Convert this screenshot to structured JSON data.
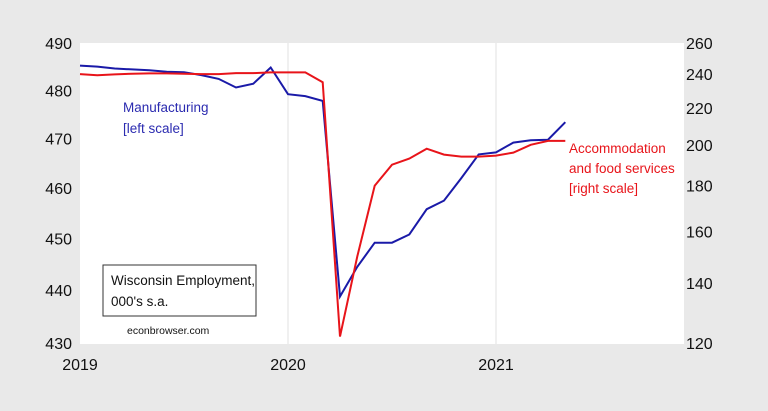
{
  "chart_data": {
    "type": "line",
    "x_dates": [
      "2019-01",
      "2019-02",
      "2019-03",
      "2019-04",
      "2019-05",
      "2019-06",
      "2019-07",
      "2019-08",
      "2019-09",
      "2019-10",
      "2019-11",
      "2019-12",
      "2020-01",
      "2020-02",
      "2020-03",
      "2020-04",
      "2020-05",
      "2020-06",
      "2020-07",
      "2020-08",
      "2020-09",
      "2020-10",
      "2020-11",
      "2020-12",
      "2021-01",
      "2021-02",
      "2021-03",
      "2021-04",
      "2021-05"
    ],
    "x_ticks": [
      "2019",
      "2020",
      "2021"
    ],
    "left_axis": {
      "ylim": [
        430,
        490
      ],
      "scale": "log",
      "ticks": [
        "430",
        "440",
        "450",
        "460",
        "470",
        "480",
        "490"
      ]
    },
    "right_axis": {
      "ylim": [
        120,
        260
      ],
      "scale": "log",
      "ticks": [
        "120",
        "140",
        "160",
        "180",
        "200",
        "220",
        "240",
        "260"
      ]
    },
    "grid": "vertical at year marks",
    "series": [
      {
        "label_lines": [
          "Manufacturing",
          "[left scale]"
        ],
        "axis": "left",
        "color": "#1a1aa8",
        "values": [
          485.2,
          485.0,
          484.6,
          484.4,
          484.2,
          483.9,
          483.8,
          483.2,
          482.4,
          480.6,
          481.4,
          484.8,
          479.2,
          478.8,
          477.8,
          438.8,
          444.5,
          449.2,
          449.2,
          450.8,
          455.8,
          457.5,
          462.0,
          466.8,
          467.2,
          469.2,
          469.7,
          469.8,
          473.4
        ]
      },
      {
        "label_lines": [
          "Accommodation",
          "and food services",
          "[right scale]"
        ],
        "axis": "right",
        "color": "#e8141a",
        "values": [
          240.0,
          239.3,
          239.8,
          240.2,
          240.4,
          240.4,
          240.2,
          240.0,
          240.0,
          240.6,
          240.6,
          241.0,
          241.0,
          241.0,
          235.0,
          122.0,
          150.0,
          180.0,
          190.0,
          193.0,
          198.0,
          195.0,
          194.0,
          194.0,
          194.5,
          196.0,
          200.0,
          202.0,
          202.0
        ]
      }
    ],
    "annotation_box": [
      "Wisconsin Employment,",
      "000's s.a."
    ],
    "source": "econbrowser.com"
  }
}
